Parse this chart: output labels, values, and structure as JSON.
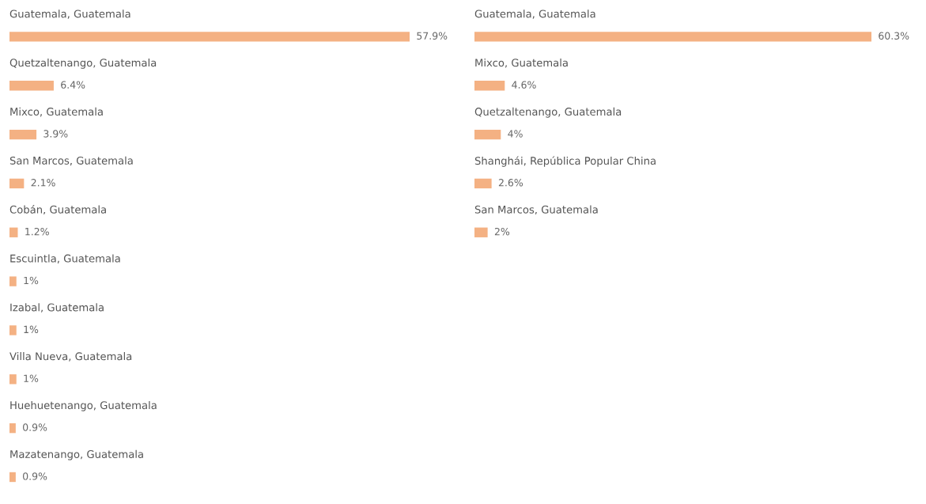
{
  "chart_data": [
    {
      "type": "bar",
      "orientation": "horizontal",
      "categories": [
        "Guatemala, Guatemala",
        "Quetzaltenango, Guatemala",
        "Mixco, Guatemala",
        "San Marcos, Guatemala",
        "Cobán, Guatemala",
        "Escuintla, Guatemala",
        "Izabal, Guatemala",
        "Villa Nueva, Guatemala",
        "Huehuetenango, Guatemala",
        "Mazatenango, Guatemala"
      ],
      "values": [
        57.9,
        6.4,
        3.9,
        2.1,
        1.2,
        1,
        1,
        1,
        0.9,
        0.9
      ],
      "value_labels": [
        "57.9%",
        "6.4%",
        "3.9%",
        "2.1%",
        "1.2%",
        "1%",
        "1%",
        "1%",
        "0.9%",
        "0.9%"
      ],
      "color": "#f4b183"
    },
    {
      "type": "bar",
      "orientation": "horizontal",
      "categories": [
        "Guatemala, Guatemala",
        "Mixco, Guatemala",
        "Quetzaltenango, Guatemala",
        "Shanghái, República Popular China",
        "San Marcos, Guatemala"
      ],
      "values": [
        60.3,
        4.6,
        4,
        2.6,
        2
      ],
      "value_labels": [
        "60.3%",
        "4.6%",
        "4%",
        "2.6%",
        "2%"
      ],
      "color": "#f4b183"
    }
  ]
}
